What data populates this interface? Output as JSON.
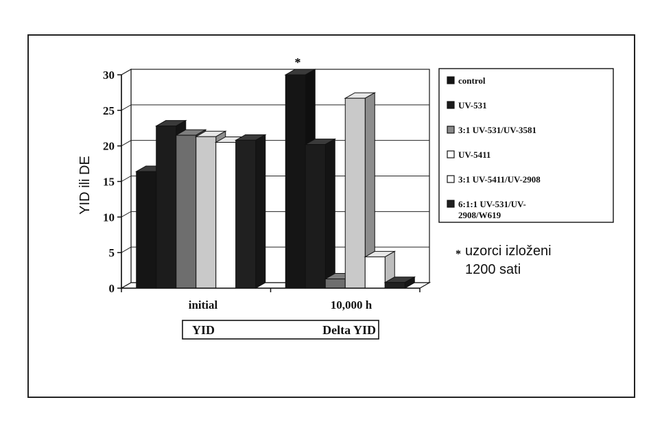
{
  "chart_data": {
    "type": "bar",
    "title": "",
    "xlabel": "",
    "ylabel": "YID ili DE",
    "ylim": [
      0,
      30
    ],
    "yticks": [
      0,
      5,
      10,
      15,
      20,
      25,
      30
    ],
    "grid": true,
    "legend_position": "right",
    "categories": [
      "initial",
      "10,000 h"
    ],
    "group_labels": [
      "YID",
      "Delta YID"
    ],
    "series": [
      {
        "name": "control",
        "values": [
          16.4,
          30
        ],
        "color": "#151515",
        "swatch": "#151515"
      },
      {
        "name": "UV-531",
        "values": [
          22.8,
          20.2
        ],
        "color": "#1c1c1c",
        "swatch": "#1c1c1c"
      },
      {
        "name": "3:1 UV-531/UV-3581",
        "values": [
          21.5,
          1.3
        ],
        "color": "#6e6e6e",
        "swatch": "#8a8a8a"
      },
      {
        "name": "UV-5411",
        "values": [
          21.3,
          26.7
        ],
        "color": "#c9c9c9",
        "swatch": "#ffffff"
      },
      {
        "name": "3:1 UV-5411/UV-2908",
        "values": [
          20.5,
          4.4
        ],
        "color": "#ffffff",
        "swatch": "#ffffff"
      },
      {
        "name": "6:1:1 UV-531/UV-2908/W619",
        "values": [
          20.8,
          0.8
        ],
        "color": "#202020",
        "swatch": "#202020"
      }
    ],
    "legend_lines": [
      [
        "control"
      ],
      [
        "UV-531"
      ],
      [
        "3:1 UV-531/UV-3581"
      ],
      [
        "UV-5411"
      ],
      [
        "3:1 UV-5411/UV-2908"
      ],
      [
        "6:1:1 UV-531/UV-",
        "2908/W619"
      ]
    ],
    "annotations": {
      "marker": "*",
      "note_lines": [
        "uzorci izloženi",
        "1200 sati"
      ]
    }
  }
}
